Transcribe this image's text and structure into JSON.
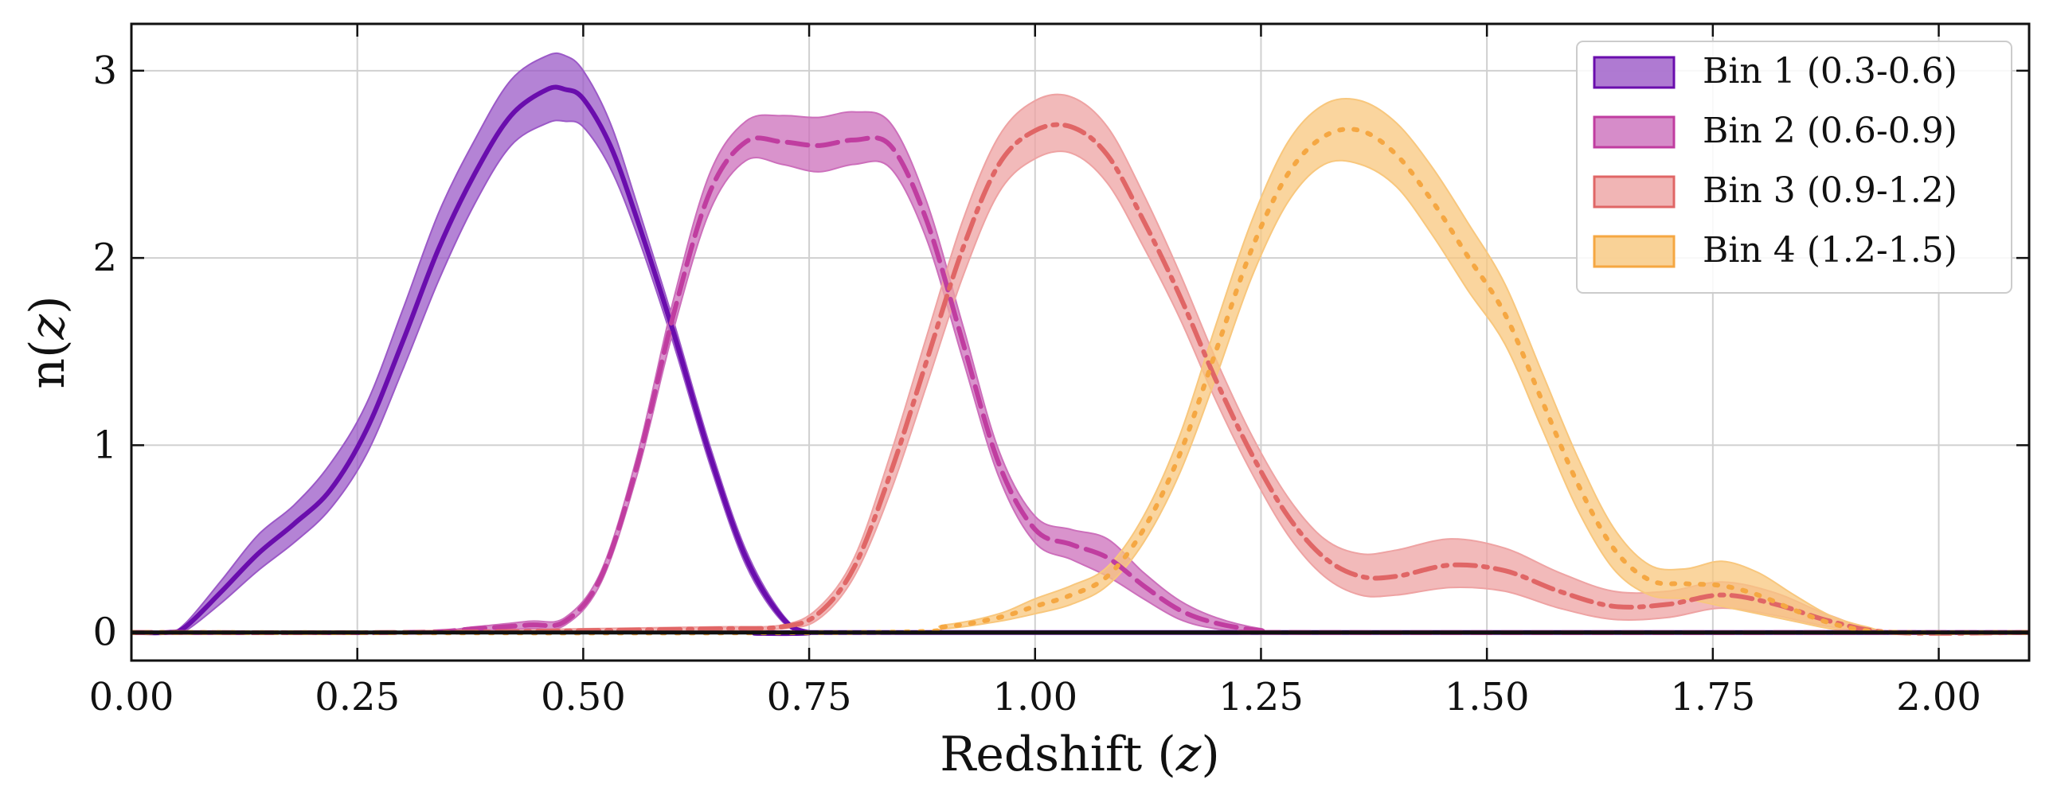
{
  "chart_data": {
    "type": "area",
    "xlabel": "Redshift",
    "xlabel_var": "z",
    "ylabel": "n",
    "ylabel_var": "z",
    "xlim": [
      0.0,
      2.1
    ],
    "ylim": [
      -0.15,
      3.25
    ],
    "xticks": [
      0.0,
      0.25,
      0.5,
      0.75,
      1.0,
      1.25,
      1.5,
      1.75,
      2.0
    ],
    "xtick_labels": [
      "0.00",
      "0.25",
      "0.50",
      "0.75",
      "1.00",
      "1.25",
      "1.50",
      "1.75",
      "2.00"
    ],
    "yticks": [
      0,
      1,
      2,
      3
    ],
    "ytick_labels": [
      "0",
      "1",
      "2",
      "3"
    ],
    "grid": true,
    "legend_position": "top-right",
    "baseline": 0,
    "series": [
      {
        "name": "Bin 1 (0.3-0.6)",
        "color": "#6a0dad",
        "fill": "#9b59c7",
        "line_style": "solid",
        "x": [
          0.0,
          0.04,
          0.06,
          0.1,
          0.14,
          0.18,
          0.22,
          0.26,
          0.3,
          0.34,
          0.38,
          0.42,
          0.46,
          0.48,
          0.5,
          0.53,
          0.56,
          0.6,
          0.64,
          0.68,
          0.72,
          0.75,
          0.8,
          2.1
        ],
        "mean": [
          0.0,
          0.0,
          0.03,
          0.22,
          0.42,
          0.58,
          0.76,
          1.08,
          1.55,
          2.05,
          2.45,
          2.76,
          2.9,
          2.9,
          2.85,
          2.6,
          2.2,
          1.6,
          0.95,
          0.4,
          0.08,
          0.0,
          0.0,
          0.0
        ],
        "upper": [
          0.0,
          0.0,
          0.05,
          0.28,
          0.52,
          0.68,
          0.9,
          1.22,
          1.72,
          2.24,
          2.63,
          2.95,
          3.08,
          3.08,
          3.0,
          2.72,
          2.28,
          1.66,
          1.0,
          0.44,
          0.1,
          0.0,
          0.0,
          0.0
        ],
        "lower": [
          0.0,
          0.0,
          0.01,
          0.16,
          0.33,
          0.48,
          0.66,
          0.95,
          1.4,
          1.88,
          2.29,
          2.6,
          2.72,
          2.73,
          2.7,
          2.48,
          2.12,
          1.54,
          0.9,
          0.36,
          0.06,
          0.0,
          0.0,
          0.0
        ]
      },
      {
        "name": "Bin 2 (0.6-0.9)",
        "color": "#c03da0",
        "fill": "#cc6fbb",
        "line_style": "dashed",
        "x": [
          0.0,
          0.3,
          0.38,
          0.44,
          0.48,
          0.52,
          0.56,
          0.6,
          0.64,
          0.68,
          0.72,
          0.76,
          0.8,
          0.84,
          0.88,
          0.92,
          0.96,
          1.0,
          1.04,
          1.08,
          1.12,
          1.16,
          1.2,
          1.25,
          1.3,
          2.1
        ],
        "mean": [
          0.0,
          0.0,
          0.02,
          0.04,
          0.06,
          0.3,
          0.9,
          1.7,
          2.35,
          2.62,
          2.62,
          2.6,
          2.63,
          2.6,
          2.2,
          1.55,
          0.9,
          0.55,
          0.47,
          0.4,
          0.25,
          0.12,
          0.05,
          0.01,
          0.0,
          0.0
        ],
        "upper": [
          0.0,
          0.0,
          0.03,
          0.06,
          0.08,
          0.33,
          0.95,
          1.78,
          2.45,
          2.73,
          2.76,
          2.75,
          2.78,
          2.72,
          2.3,
          1.64,
          0.97,
          0.62,
          0.55,
          0.5,
          0.32,
          0.17,
          0.08,
          0.02,
          0.0,
          0.0
        ],
        "lower": [
          0.0,
          0.0,
          0.01,
          0.02,
          0.04,
          0.27,
          0.85,
          1.62,
          2.25,
          2.52,
          2.5,
          2.46,
          2.5,
          2.48,
          2.1,
          1.46,
          0.83,
          0.48,
          0.39,
          0.3,
          0.18,
          0.07,
          0.02,
          0.0,
          0.0,
          0.0
        ]
      },
      {
        "name": "Bin 3 (0.9-1.2)",
        "color": "#e06666",
        "fill": "#eea3a3",
        "line_style": "dashdot",
        "x": [
          0.0,
          0.3,
          0.5,
          0.65,
          0.72,
          0.76,
          0.8,
          0.84,
          0.88,
          0.92,
          0.96,
          1.0,
          1.04,
          1.08,
          1.12,
          1.16,
          1.2,
          1.24,
          1.28,
          1.32,
          1.36,
          1.4,
          1.46,
          1.52,
          1.58,
          1.64,
          1.7,
          1.76,
          1.82,
          1.88,
          1.95,
          2.1
        ],
        "mean": [
          0.0,
          0.0,
          0.01,
          0.02,
          0.03,
          0.1,
          0.35,
          0.85,
          1.45,
          2.05,
          2.5,
          2.68,
          2.7,
          2.55,
          2.2,
          1.8,
          1.35,
          0.95,
          0.62,
          0.4,
          0.3,
          0.3,
          0.36,
          0.33,
          0.22,
          0.14,
          0.15,
          0.2,
          0.15,
          0.06,
          0.0,
          0.0
        ],
        "upper": [
          0.0,
          0.0,
          0.02,
          0.03,
          0.04,
          0.13,
          0.4,
          0.95,
          1.58,
          2.2,
          2.65,
          2.84,
          2.86,
          2.7,
          2.34,
          1.92,
          1.46,
          1.05,
          0.72,
          0.5,
          0.42,
          0.44,
          0.5,
          0.45,
          0.32,
          0.22,
          0.22,
          0.27,
          0.21,
          0.09,
          0.0,
          0.0
        ],
        "lower": [
          0.0,
          0.0,
          0.0,
          0.01,
          0.02,
          0.07,
          0.3,
          0.75,
          1.32,
          1.9,
          2.35,
          2.53,
          2.56,
          2.4,
          2.06,
          1.68,
          1.24,
          0.85,
          0.52,
          0.3,
          0.2,
          0.2,
          0.24,
          0.22,
          0.13,
          0.07,
          0.08,
          0.13,
          0.09,
          0.03,
          0.0,
          0.0
        ]
      },
      {
        "name": "Bin 4 (1.2-1.5)",
        "color": "#f5a742",
        "fill": "#f8c77d",
        "line_style": "dotted",
        "x": [
          0.0,
          0.8,
          0.9,
          0.96,
          1.0,
          1.04,
          1.08,
          1.12,
          1.16,
          1.2,
          1.24,
          1.28,
          1.32,
          1.36,
          1.4,
          1.44,
          1.48,
          1.52,
          1.56,
          1.6,
          1.64,
          1.68,
          1.72,
          1.76,
          1.8,
          1.84,
          1.88,
          1.92,
          1.96,
          2.1
        ],
        "mean": [
          0.0,
          0.0,
          0.03,
          0.08,
          0.14,
          0.2,
          0.3,
          0.55,
          0.95,
          1.5,
          2.05,
          2.45,
          2.65,
          2.68,
          2.55,
          2.3,
          2.0,
          1.7,
          1.25,
          0.8,
          0.45,
          0.28,
          0.26,
          0.25,
          0.2,
          0.12,
          0.05,
          0.01,
          0.0,
          0.0
        ],
        "upper": [
          0.0,
          0.0,
          0.04,
          0.1,
          0.18,
          0.25,
          0.35,
          0.62,
          1.05,
          1.64,
          2.2,
          2.62,
          2.82,
          2.84,
          2.72,
          2.48,
          2.18,
          1.86,
          1.4,
          0.94,
          0.56,
          0.36,
          0.34,
          0.38,
          0.32,
          0.2,
          0.09,
          0.03,
          0.0,
          0.0
        ],
        "lower": [
          0.0,
          0.0,
          0.02,
          0.06,
          0.1,
          0.15,
          0.25,
          0.48,
          0.85,
          1.36,
          1.9,
          2.3,
          2.5,
          2.5,
          2.38,
          2.12,
          1.82,
          1.54,
          1.1,
          0.66,
          0.34,
          0.2,
          0.18,
          0.14,
          0.1,
          0.06,
          0.02,
          0.0,
          0.0,
          0.0
        ]
      }
    ]
  }
}
